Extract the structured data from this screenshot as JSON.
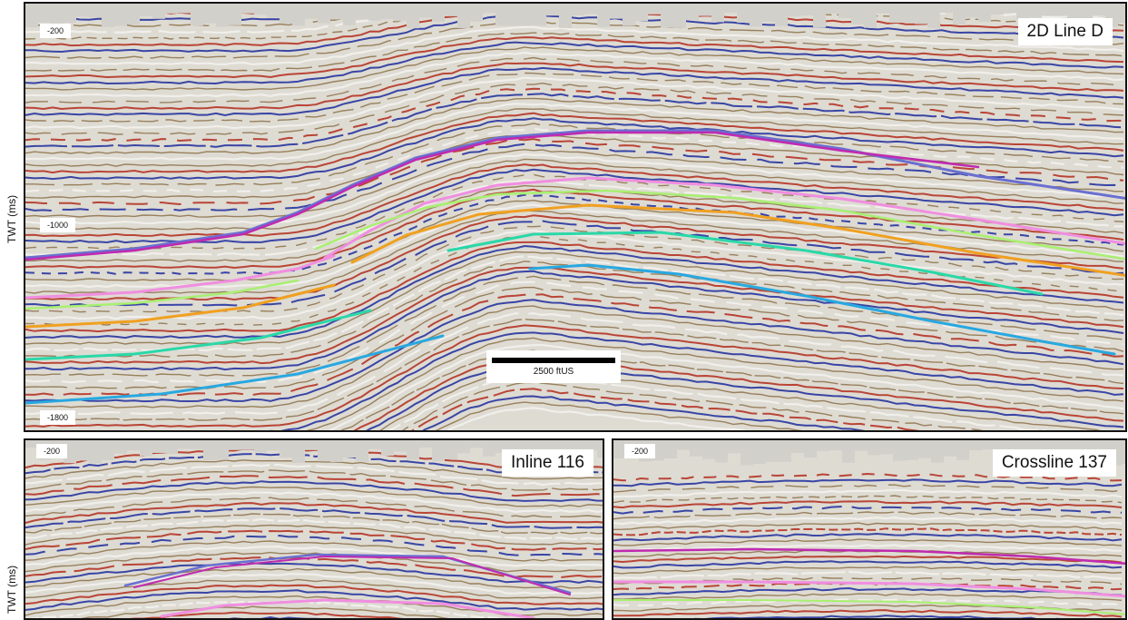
{
  "panels": {
    "top": {
      "title": "2D Line D",
      "ticks": [
        "-200",
        "-1000",
        "-1800"
      ],
      "ylabel": "TWT (ms)",
      "scalebar": "2500 ftUS"
    },
    "bottom_left": {
      "title": "Inline 116",
      "ticks": [
        "-200"
      ],
      "ylabel": "TWT (ms)"
    },
    "bottom_right": {
      "title": "Crossline 137",
      "ticks": [
        "-200"
      ]
    }
  },
  "colors": {
    "peak_red": "#b32a1a",
    "trough_blue": "#1c2a9c",
    "wiggle_brown": "#7a5a2a",
    "horizon_violet": "#6a6fd0",
    "horizon_magenta": "#c02ab0",
    "horizon_pink": "#f08ee0",
    "horizon_lime": "#a8f070",
    "horizon_orange": "#f0a020",
    "horizon_teal": "#2ad8a8",
    "horizon_cyan": "#28a8e0"
  }
}
